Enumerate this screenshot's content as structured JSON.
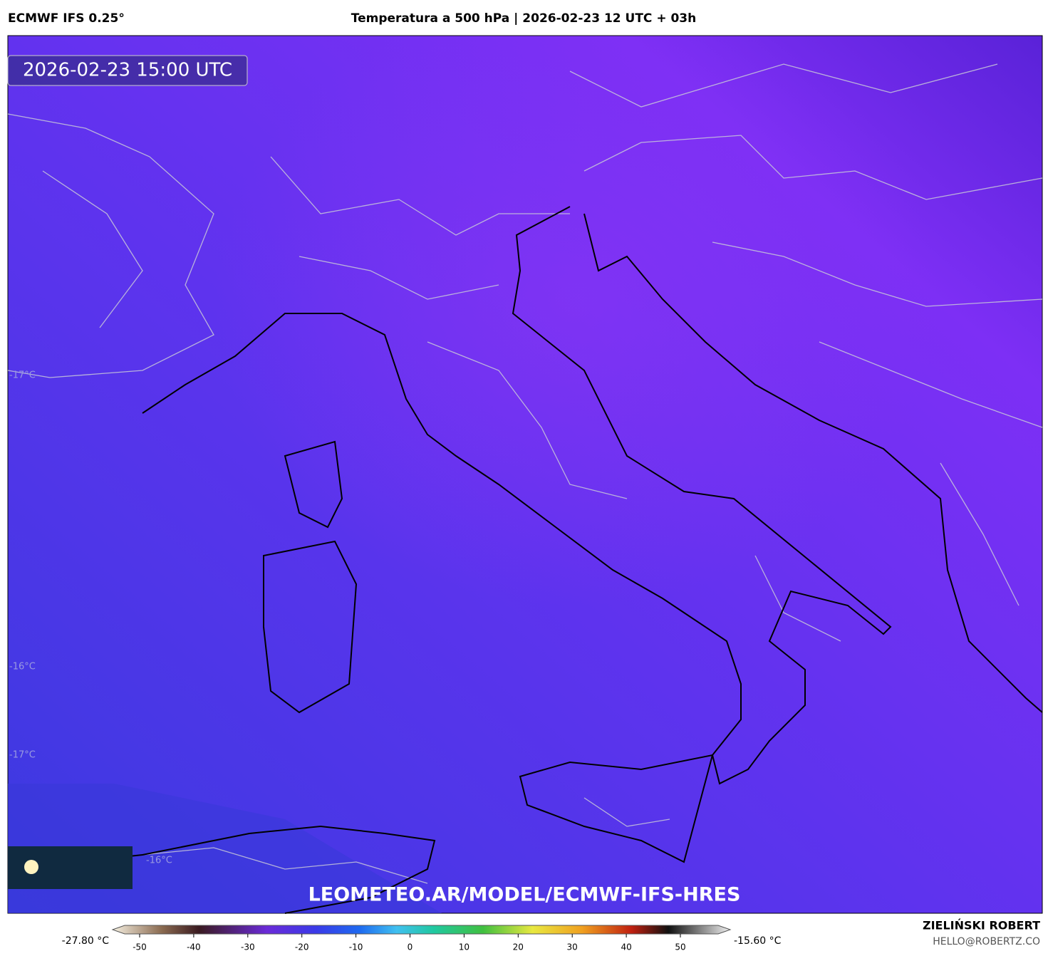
{
  "header": {
    "model": "ECMWF IFS 0.25°",
    "title": "Temperatura a 500 hPa | 2026-02-23 12 UTC + 03h"
  },
  "map": {
    "timestamp": "2026-02-23 15:00 UTC",
    "watermark": "LEOMETEO.AR/MODEL/ECMWF-IFS-HRES",
    "contour_labels": [
      "-17°C",
      "-16°C",
      "-17°C",
      "-16°C"
    ]
  },
  "colorbar": {
    "min_label": "-27.80 °C",
    "max_label": "-15.60 °C",
    "ticks": [
      -50,
      -40,
      -30,
      -20,
      -10,
      0,
      10,
      20,
      30,
      40,
      50
    ]
  },
  "footer": {
    "author": "ZIELIŃSKI ROBERT",
    "email": "HELLO@ROBERTZ.CO"
  }
}
